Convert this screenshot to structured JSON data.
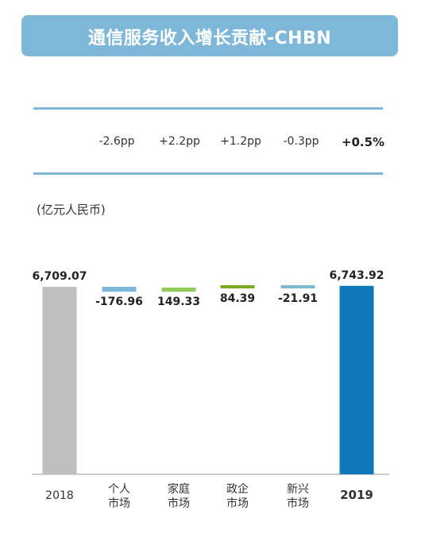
{
  "title": "通信服务收入增长贡献-CHBN",
  "pp_row": [
    "-2.6pp",
    "+2.2pp",
    "+1.2pp",
    "-0.3pp",
    "+0.5%"
  ],
  "unit_label": "(亿元人民币)",
  "chart_data": {
    "type": "bar",
    "subtype": "waterfall",
    "categories": [
      [
        "2018"
      ],
      [
        "个人",
        "市场"
      ],
      [
        "家庭",
        "市场"
      ],
      [
        "政企",
        "市场"
      ],
      [
        "新兴",
        "市场"
      ],
      [
        "2019"
      ]
    ],
    "values": [
      6709.07,
      -176.96,
      149.33,
      84.39,
      -21.91,
      6743.92
    ],
    "labels": [
      "6,709.07",
      "-176.96",
      "149.33",
      "84.39",
      "-21.91",
      "6,743.92"
    ],
    "colors": [
      "#bfbfbf",
      "#7fb7d9",
      "#92c95a",
      "#76ad23",
      "#7fb7d9",
      "#0e78b9"
    ],
    "category_bold": [
      false,
      false,
      false,
      false,
      false,
      true
    ],
    "grid": false
  }
}
